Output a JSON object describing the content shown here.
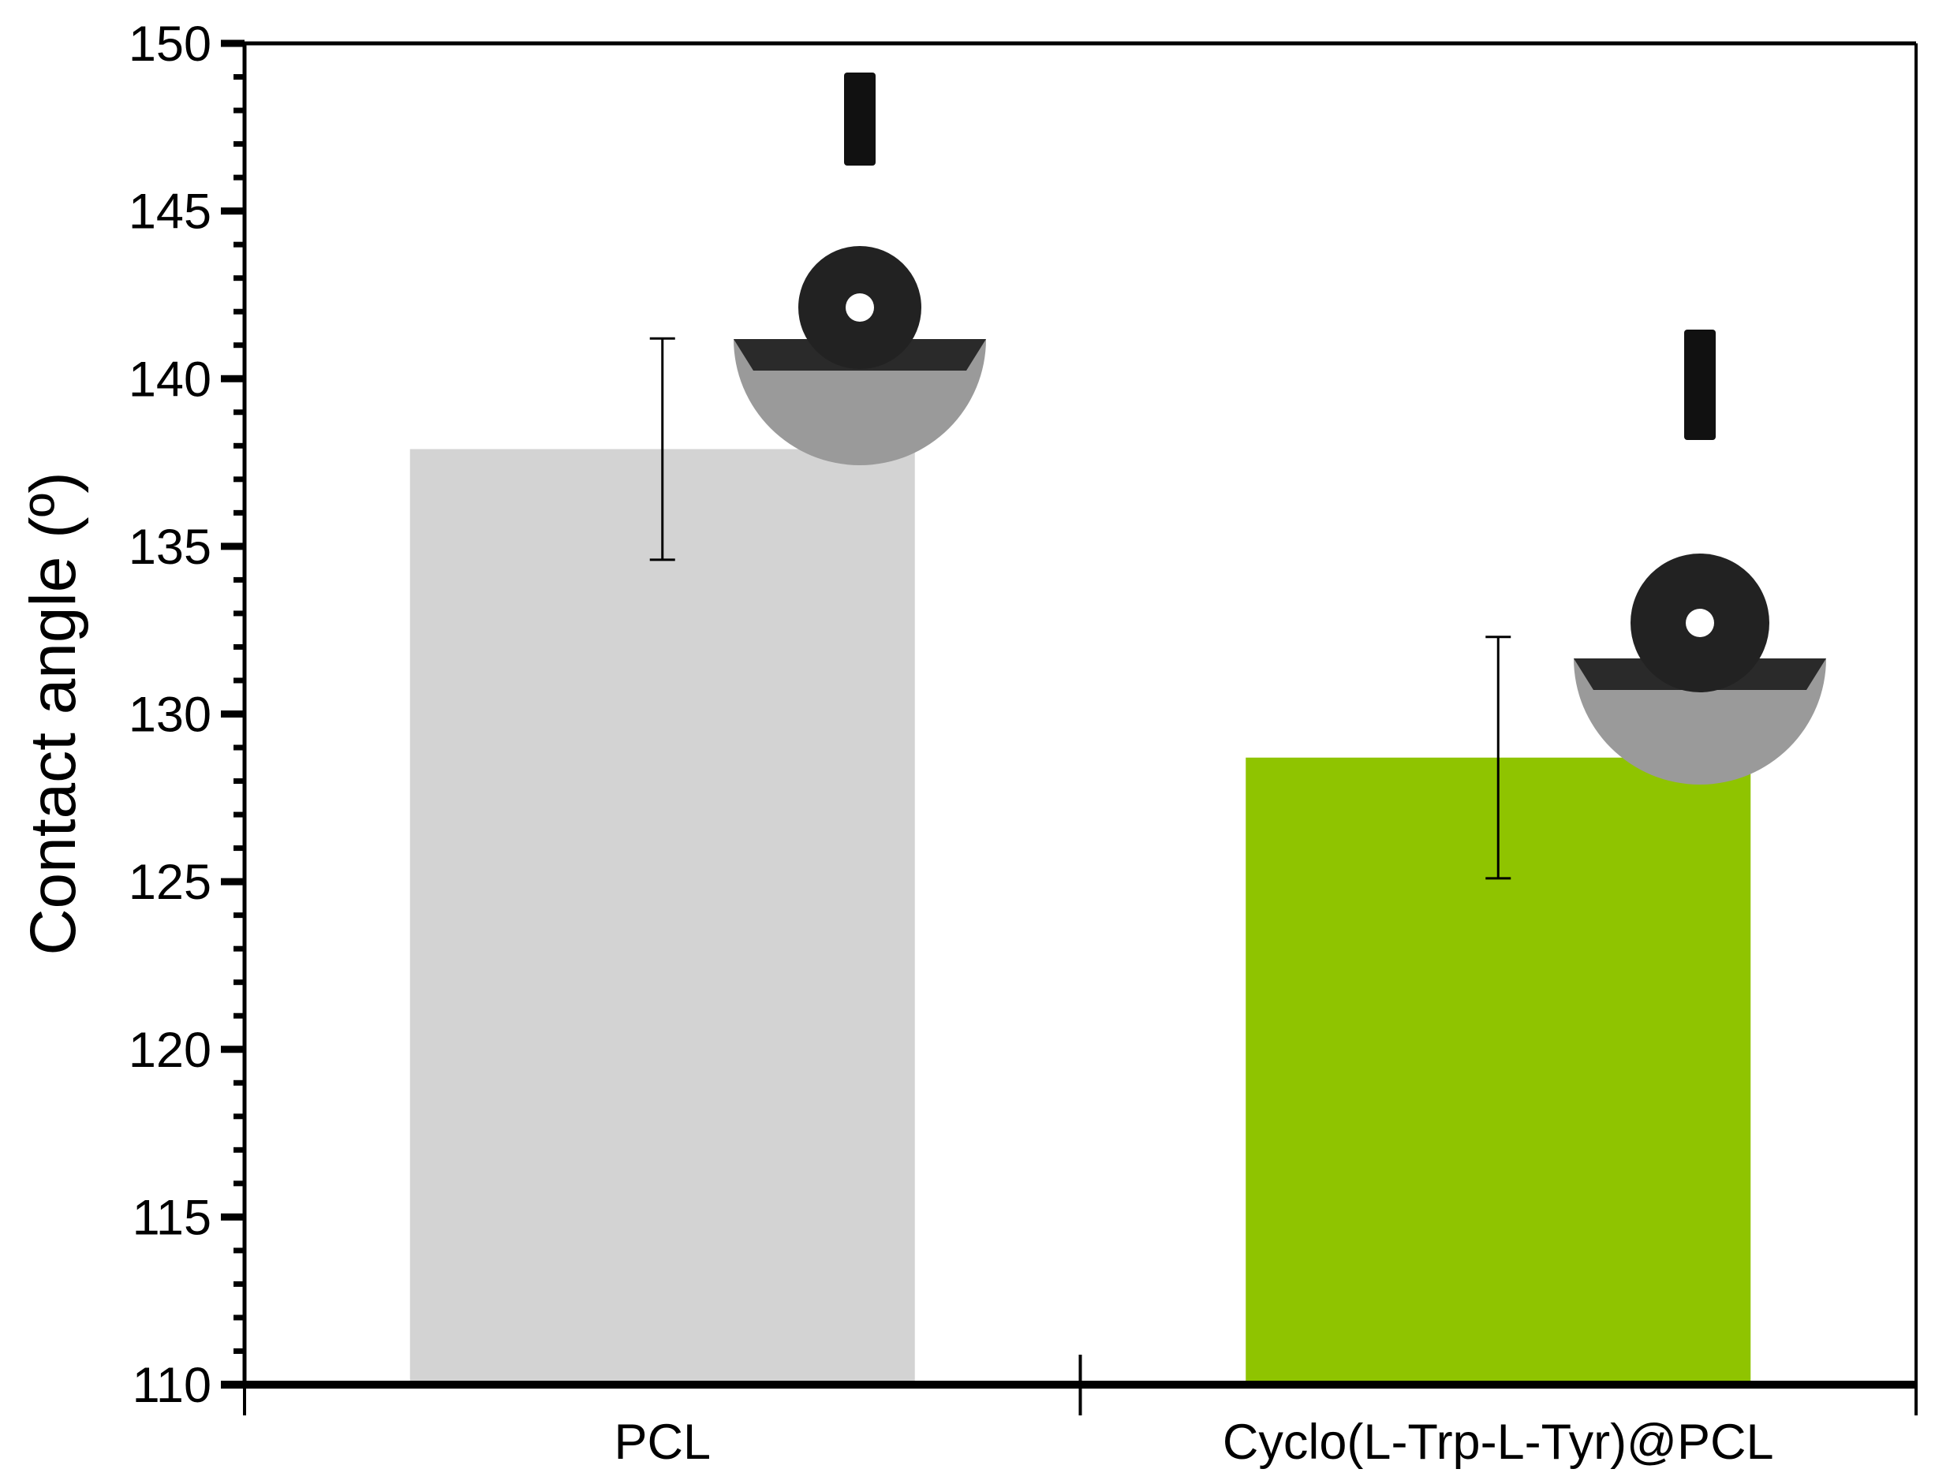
{
  "chart_data": {
    "type": "bar",
    "title": "",
    "xlabel": "",
    "ylabel": "Contact angle (º)",
    "ylim": [
      110,
      150
    ],
    "yticks": [
      110,
      115,
      120,
      125,
      130,
      135,
      140,
      145,
      150
    ],
    "yminor_step": 1,
    "grid": false,
    "categories": [
      "PCL",
      "Cyclo(L-Trp-L-Tyr)@PCL"
    ],
    "values": [
      137.9,
      128.7
    ],
    "errors": [
      3.3,
      3.6
    ],
    "colors": [
      "#d3d3d3",
      "#8fc400"
    ],
    "insets": [
      "water-droplet-photo",
      "water-droplet-photo"
    ]
  }
}
